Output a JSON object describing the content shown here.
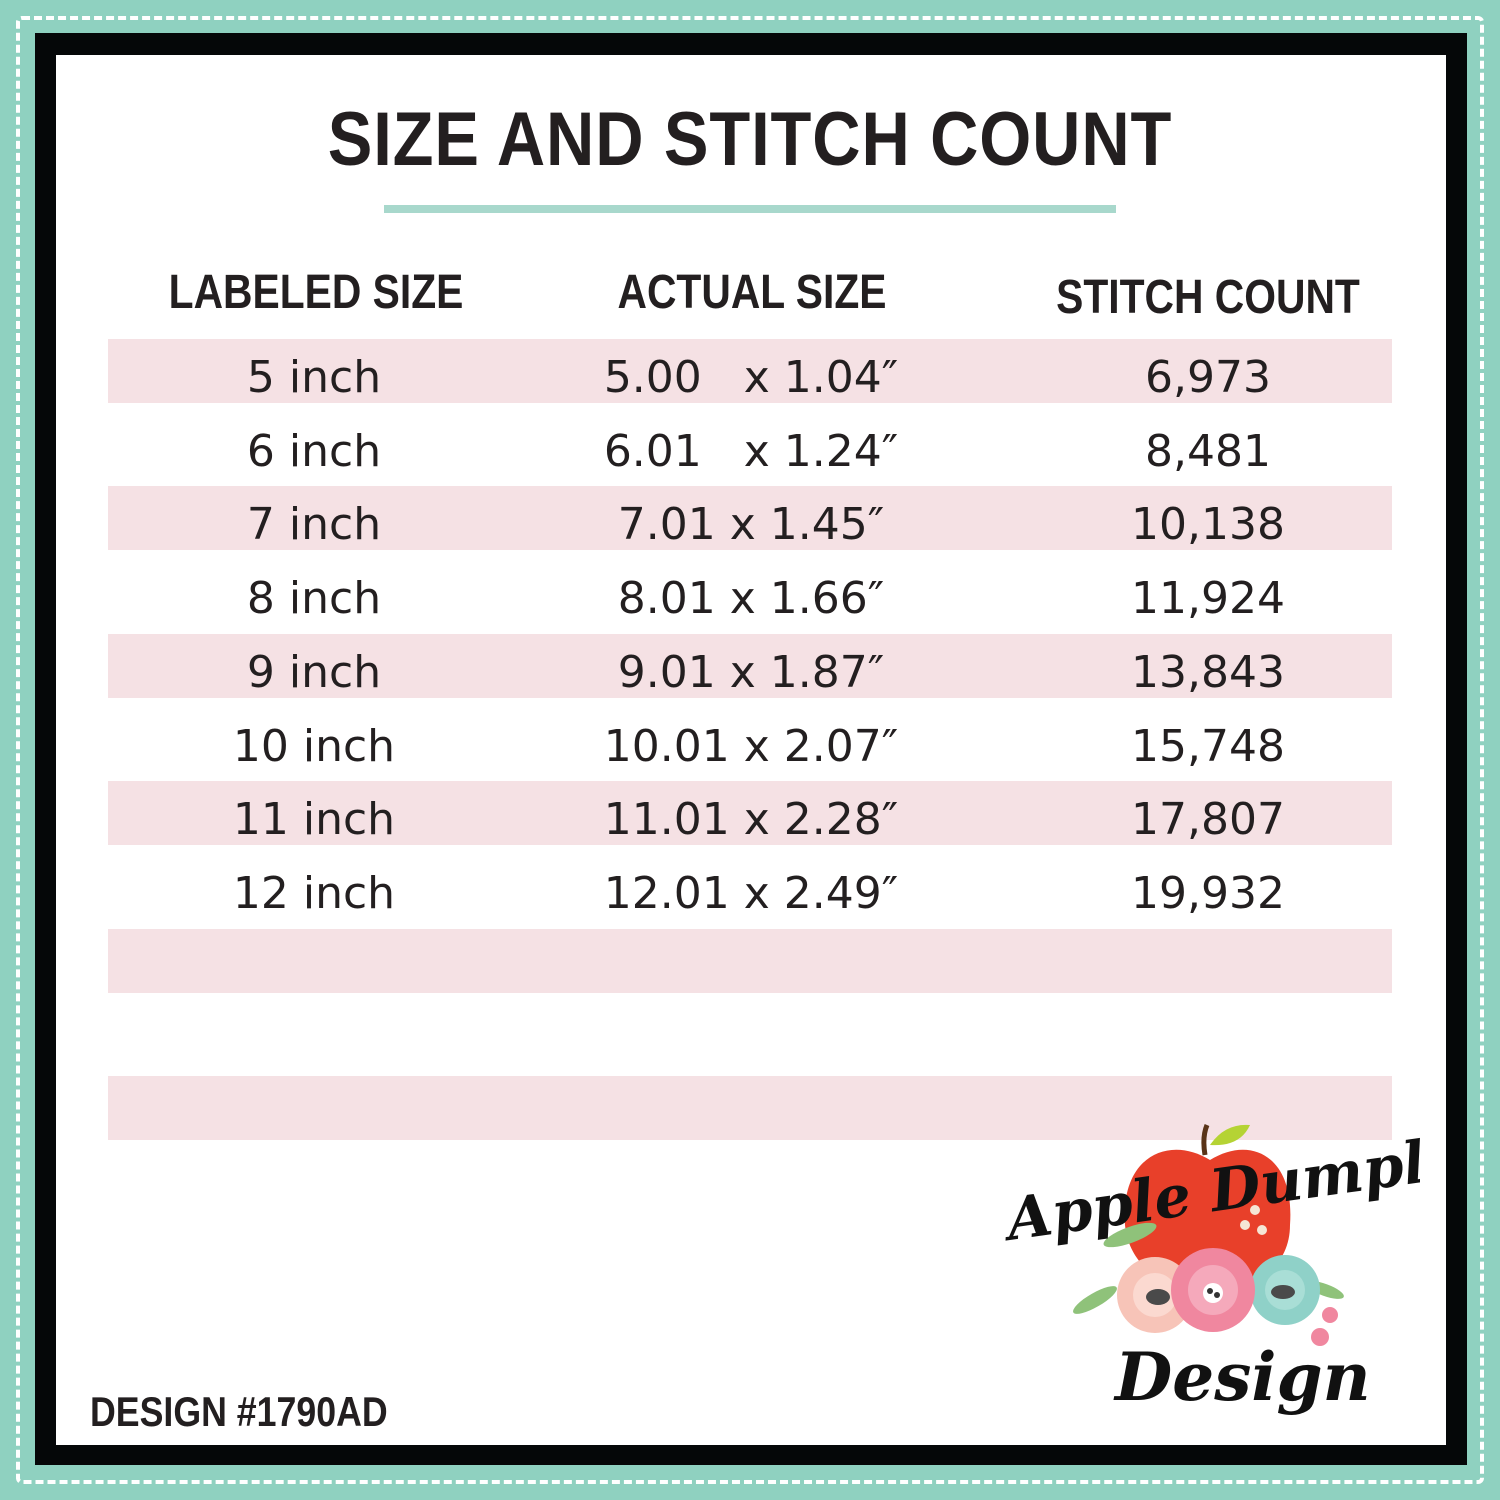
{
  "title": "SIZE AND STITCH COUNT",
  "headers": [
    "LABELED SIZE",
    "ACTUAL SIZE",
    "STITCH COUNT"
  ],
  "rows": [
    [
      "5 inch",
      "5.00   x 1.04″",
      "6,973"
    ],
    [
      "6 inch",
      "6.01   x 1.24″",
      "8,481"
    ],
    [
      "7 inch",
      "7.01 x 1.45″",
      "10,138"
    ],
    [
      "8 inch",
      "8.01 x 1.66″",
      "11,924"
    ],
    [
      "9 inch",
      "9.01 x 1.87″",
      "13,843"
    ],
    [
      "10 inch",
      "10.01 x 2.07″",
      "15,748"
    ],
    [
      "11 inch",
      "11.01 x 2.28″",
      "17,807"
    ],
    [
      "12 inch",
      "12.01 x 2.49″",
      "19,932"
    ],
    [
      "",
      "",
      ""
    ],
    [
      "",
      "",
      ""
    ],
    [
      "",
      "",
      ""
    ],
    [
      "",
      "",
      ""
    ]
  ],
  "design_number": "DESIGN #1790AD",
  "logo": {
    "line1": "Apple Dumplin",
    "line2": "Design"
  },
  "colors": {
    "border_teal": "#8fd1c0",
    "frame": "#050708",
    "row_pink": "#f5e1e4",
    "accent_line": "#a8d8cc",
    "apple_red": "#e8402a"
  }
}
